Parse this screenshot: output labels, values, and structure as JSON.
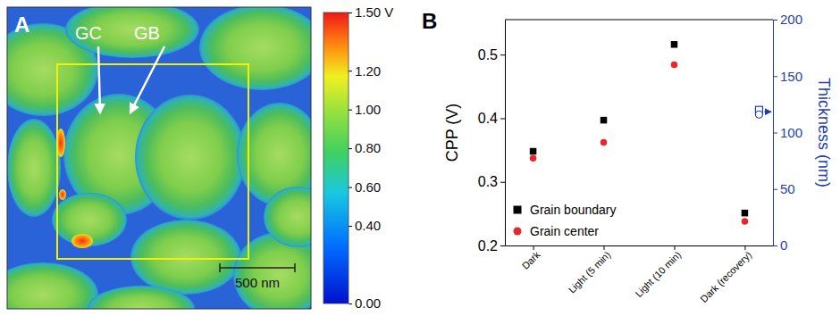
{
  "chart_data": [
    {
      "type": "image",
      "panel_label": "A",
      "annotations": [
        "GC",
        "GB",
        "500 nm"
      ],
      "colorbar": {
        "range": [
          0,
          1.5
        ],
        "ticks": [
          {
            "value": 1.5,
            "label": "1.50 V"
          },
          {
            "value": 1.2,
            "label": "1.20"
          },
          {
            "value": 1.0,
            "label": "1.00"
          },
          {
            "value": 0.8,
            "label": "0.80"
          },
          {
            "value": 0.6,
            "label": "0.60"
          },
          {
            "value": 0.4,
            "label": "0.40"
          },
          {
            "value": 0.0,
            "label": "0.00"
          }
        ]
      }
    },
    {
      "type": "scatter",
      "panel_label": "B",
      "categories": [
        "Dark",
        "Light (5 min)",
        "Light (10 min)",
        "Dark (recovery)"
      ],
      "y_label": "CPP (V)",
      "y2_label": "Thickness (nm)",
      "ylim": [
        0.2,
        0.555
      ],
      "yticks": [
        0.2,
        0.3,
        0.4,
        0.5
      ],
      "y2lim": [
        0,
        200
      ],
      "y2ticks": [
        0,
        50,
        100,
        150,
        200
      ],
      "legend": "bottom-left",
      "series": [
        {
          "name": "Grain boundary",
          "color": "#000000",
          "marker": "square",
          "values": [
            0.348,
            0.397,
            0.516,
            0.251
          ]
        },
        {
          "name": "Grain center",
          "color": "#e8262b",
          "marker": "circle",
          "values": [
            0.337,
            0.362,
            0.484,
            0.238
          ]
        },
        {
          "color": "#1f3fb0",
          "marker": "square-open",
          "axis": "y2",
          "values": [
            null,
            null,
            null,
            120
          ]
        },
        {
          "color": "#1f3fb0",
          "marker": "circle-open",
          "axis": "y2",
          "values": [
            null,
            null,
            null,
            116
          ]
        }
      ]
    }
  ]
}
